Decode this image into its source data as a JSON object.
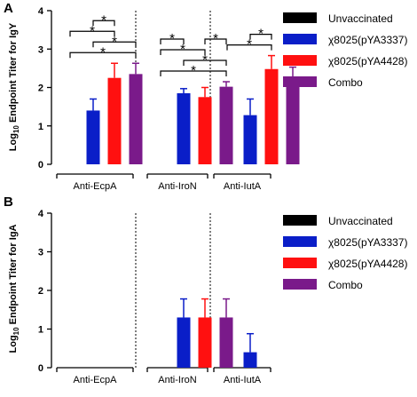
{
  "colors": {
    "Unvaccinated": "#000000",
    "χ8025(pYA3337)": "#0a1ec8",
    "χ8025(pYA4428)": "#ff1010",
    "Combo": "#7a1a8a"
  },
  "chart_data": [
    {
      "type": "bar",
      "panel": "A",
      "ylabel_prefix": "Log",
      "ylabel_sub": "10",
      "ylabel_rest": " Endpoint Titer for IgY",
      "ylim": [
        0,
        4
      ],
      "yticks": [
        "0",
        "1",
        "2",
        "3",
        "4"
      ],
      "categories": [
        "Anti-EcpA",
        "Anti-IroN",
        "Anti-IutA"
      ],
      "legend": [
        "Unvaccinated",
        "χ8025(pYA3337)",
        "χ8025(pYA4428)",
        "Combo"
      ],
      "series": [
        {
          "name": "Unvaccinated",
          "values": [
            0,
            0,
            0
          ],
          "errors": [
            0,
            0,
            0
          ]
        },
        {
          "name": "χ8025(pYA3337)",
          "values": [
            1.4,
            1.85,
            1.28
          ],
          "errors": [
            0.3,
            0.12,
            0.42
          ]
        },
        {
          "name": "χ8025(pYA4428)",
          "values": [
            2.25,
            1.75,
            2.48
          ],
          "errors": [
            0.38,
            0.25,
            0.35
          ]
        },
        {
          "name": "Combo",
          "values": [
            2.35,
            2.02,
            2.18
          ],
          "errors": [
            0.28,
            0.13,
            0.35
          ]
        }
      ],
      "significance": [
        {
          "group": 0,
          "from": 0,
          "to": 3,
          "label": "*"
        },
        {
          "group": 0,
          "from": 1,
          "to": 3,
          "label": "*"
        },
        {
          "group": 0,
          "from": 0,
          "to": 2,
          "label": "*"
        },
        {
          "group": 0,
          "from": 1,
          "to": 2,
          "label": "*"
        },
        {
          "group": 1,
          "from": 0,
          "to": 3,
          "label": "*"
        },
        {
          "group": 1,
          "from": 1,
          "to": 3,
          "label": "*"
        },
        {
          "group": 1,
          "from": 0,
          "to": 2,
          "label": "*"
        },
        {
          "group": 1,
          "from": 2,
          "to": 3,
          "label": "*"
        },
        {
          "group": 1,
          "from": 0,
          "to": 1,
          "label": "*"
        },
        {
          "group": 2,
          "from": 0,
          "to": 2,
          "label": "*"
        },
        {
          "group": 2,
          "from": 1,
          "to": 2,
          "label": "*"
        }
      ]
    },
    {
      "type": "bar",
      "panel": "B",
      "ylabel_prefix": "Log",
      "ylabel_sub": "10",
      "ylabel_rest": " Endpoint Titer for IgA",
      "ylim": [
        0,
        4
      ],
      "yticks": [
        "0",
        "1",
        "2",
        "3",
        "4"
      ],
      "categories": [
        "Anti-EcpA",
        "Anti-IroN",
        "Anti-IutA"
      ],
      "legend": [
        "Unvaccinated",
        "χ8025(pYA3337)",
        "χ8025(pYA4428)",
        "Combo"
      ],
      "series": [
        {
          "name": "Unvaccinated",
          "values": [
            0,
            0,
            0
          ],
          "errors": [
            0,
            0,
            0
          ]
        },
        {
          "name": "χ8025(pYA3337)",
          "values": [
            0,
            1.3,
            0.4
          ],
          "errors": [
            0,
            0.48,
            0.48
          ]
        },
        {
          "name": "χ8025(pYA4428)",
          "values": [
            0,
            1.3,
            0
          ],
          "errors": [
            0,
            0.48,
            0
          ]
        },
        {
          "name": "Combo",
          "values": [
            0,
            1.3,
            0
          ],
          "errors": [
            0,
            0.48,
            0
          ]
        }
      ],
      "significance": []
    }
  ]
}
